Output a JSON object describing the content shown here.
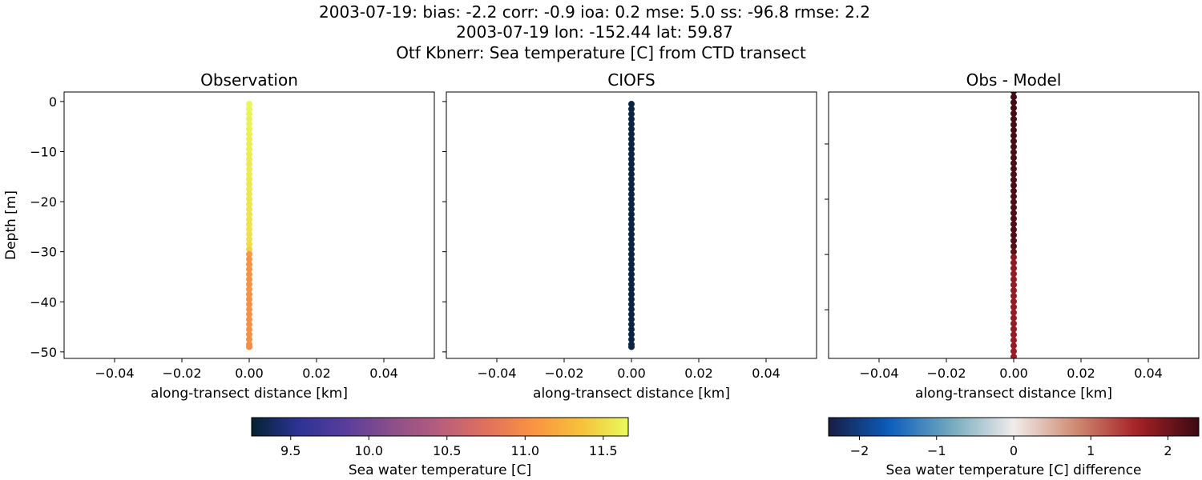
{
  "title_lines": [
    "2003-07-19: bias: -2.2  corr: -0.9  ioa: 0.2  mse: 5.0  ss: -96.8  rmse: 2.2",
    "2003-07-19 lon: -152.44 lat: 59.87",
    "Otf Kbnerr: Sea temperature [C] from CTD transect"
  ],
  "chart_data": [
    {
      "type": "scatter",
      "title": "Observation",
      "xlabel": "along-transect distance [km]",
      "ylabel": "Depth [m]",
      "xlim": [
        -0.055,
        0.055
      ],
      "ylim": [
        -51.3,
        1.9
      ],
      "xticks": [
        -0.04,
        -0.02,
        0.0,
        0.02,
        0.04
      ],
      "xtick_labels": [
        "−0.04",
        "−0.02",
        "0.00",
        "0.02",
        "0.04"
      ],
      "yticks": [
        0,
        -10,
        -20,
        -30,
        -40,
        -50
      ],
      "ytick_labels": [
        "0",
        "−10",
        "−20",
        "−30",
        "−40",
        "−50"
      ],
      "colormap": "thermal",
      "x": 0.0,
      "depth": [
        -0.5,
        -1.5,
        -2.5,
        -3.5,
        -4.5,
        -5.5,
        -6.5,
        -7.5,
        -8.5,
        -9.5,
        -10.5,
        -11.5,
        -12.5,
        -13.5,
        -14.5,
        -15.5,
        -16.5,
        -17.5,
        -18.5,
        -19.5,
        -20.5,
        -21.5,
        -22.5,
        -23.5,
        -24.5,
        -25.5,
        -26.5,
        -27.5,
        -28.5,
        -29.5,
        -30.5,
        -31.5,
        -32.5,
        -33.5,
        -34.5,
        -35.5,
        -36.5,
        -37.5,
        -38.5,
        -39.5,
        -40.5,
        -41.5,
        -42.5,
        -43.5,
        -44.5,
        -45.5,
        -46.5,
        -47.5,
        -48.5,
        -49.0
      ],
      "values": [
        11.65,
        11.64,
        11.63,
        11.62,
        11.62,
        11.61,
        11.61,
        11.6,
        11.6,
        11.6,
        11.59,
        11.59,
        11.58,
        11.58,
        11.58,
        11.57,
        11.57,
        11.57,
        11.56,
        11.56,
        11.56,
        11.55,
        11.55,
        11.55,
        11.54,
        11.54,
        11.53,
        11.52,
        11.5,
        11.45,
        11.1,
        11.06,
        11.05,
        11.05,
        11.05,
        11.04,
        11.04,
        11.04,
        11.04,
        11.03,
        11.03,
        11.03,
        11.03,
        11.02,
        11.02,
        11.02,
        11.02,
        11.01,
        11.0,
        11.0
      ]
    },
    {
      "type": "scatter",
      "title": "CIOFS",
      "xlabel": "along-transect distance [km]",
      "xlim": [
        -0.055,
        0.055
      ],
      "ylim": [
        -51.3,
        1.9
      ],
      "xticks": [
        -0.04,
        -0.02,
        0.0,
        0.02,
        0.04
      ],
      "xtick_labels": [
        "−0.04",
        "−0.02",
        "0.00",
        "0.02",
        "0.04"
      ],
      "yticks": [
        0,
        -10,
        -20,
        -30,
        -40,
        -50
      ],
      "colormap": "thermal",
      "x": 0.0,
      "depth": [
        -0.5,
        -1.5,
        -2.5,
        -3.5,
        -4.5,
        -5.5,
        -6.5,
        -7.5,
        -8.5,
        -9.5,
        -10.5,
        -11.5,
        -12.5,
        -13.5,
        -14.5,
        -15.5,
        -16.5,
        -17.5,
        -18.5,
        -19.5,
        -20.5,
        -21.5,
        -22.5,
        -23.5,
        -24.5,
        -25.5,
        -26.5,
        -27.5,
        -28.5,
        -29.5,
        -30.5,
        -31.5,
        -32.5,
        -33.5,
        -34.5,
        -35.5,
        -36.5,
        -37.5,
        -38.5,
        -39.5,
        -40.5,
        -41.5,
        -42.5,
        -43.5,
        -44.5,
        -45.5,
        -46.5,
        -47.5,
        -48.5,
        -49.0
      ],
      "values": [
        9.3,
        9.3,
        9.3,
        9.3,
        9.3,
        9.3,
        9.3,
        9.3,
        9.3,
        9.3,
        9.3,
        9.3,
        9.3,
        9.3,
        9.3,
        9.3,
        9.3,
        9.3,
        9.3,
        9.3,
        9.3,
        9.3,
        9.3,
        9.3,
        9.3,
        9.3,
        9.3,
        9.3,
        9.3,
        9.3,
        9.3,
        9.3,
        9.3,
        9.3,
        9.3,
        9.3,
        9.3,
        9.3,
        9.3,
        9.3,
        9.3,
        9.3,
        9.3,
        9.3,
        9.3,
        9.3,
        9.3,
        9.3,
        9.3,
        9.3
      ]
    },
    {
      "type": "scatter",
      "title": "Obs - Model",
      "xlabel": "along-transect distance [km]",
      "xlim": [
        -0.055,
        0.055
      ],
      "ylim": [
        -48.8,
        -0.6
      ],
      "xticks": [
        -0.04,
        -0.02,
        0.0,
        0.02,
        0.04
      ],
      "xtick_labels": [
        "−0.04",
        "−0.02",
        "0.00",
        "0.02",
        "0.04"
      ],
      "yticks": [
        -10,
        -20,
        -30,
        -40
      ],
      "colormap": "balance",
      "x": 0.0,
      "depth": [
        -0.5,
        -1.5,
        -2.5,
        -3.5,
        -4.5,
        -5.5,
        -6.5,
        -7.5,
        -8.5,
        -9.5,
        -10.5,
        -11.5,
        -12.5,
        -13.5,
        -14.5,
        -15.5,
        -16.5,
        -17.5,
        -18.5,
        -19.5,
        -20.5,
        -21.5,
        -22.5,
        -23.5,
        -24.5,
        -25.5,
        -26.5,
        -27.5,
        -28.5,
        -29.5,
        -30.5,
        -31.5,
        -32.5,
        -33.5,
        -34.5,
        -35.5,
        -36.5,
        -37.5,
        -38.5,
        -39.5,
        -40.5,
        -41.5,
        -42.5,
        -43.5,
        -44.5,
        -45.5,
        -46.5,
        -47.5,
        -48.5,
        -49.0
      ],
      "values": [
        2.35,
        2.34,
        2.33,
        2.32,
        2.32,
        2.31,
        2.31,
        2.3,
        2.3,
        2.3,
        2.29,
        2.29,
        2.28,
        2.28,
        2.28,
        2.27,
        2.27,
        2.27,
        2.26,
        2.26,
        2.26,
        2.25,
        2.25,
        2.25,
        2.24,
        2.24,
        2.23,
        2.22,
        2.2,
        2.15,
        1.8,
        1.76,
        1.75,
        1.75,
        1.75,
        1.74,
        1.74,
        1.74,
        1.74,
        1.73,
        1.73,
        1.73,
        1.73,
        1.72,
        1.72,
        1.72,
        1.72,
        1.71,
        1.7,
        1.7
      ]
    }
  ],
  "colorbars": [
    {
      "label": "Sea water temperature [C]",
      "range": [
        9.25,
        11.66
      ],
      "ticks": [
        9.5,
        10.0,
        10.5,
        11.0,
        11.5
      ],
      "tick_labels": [
        "9.5",
        "10.0",
        "10.5",
        "11.0",
        "11.5"
      ],
      "colormap": "thermal"
    },
    {
      "label": "Sea water temperature [C] difference",
      "range": [
        -2.4,
        2.4
      ],
      "ticks": [
        -2,
        -1,
        0,
        1,
        2
      ],
      "tick_labels": [
        "−2",
        "−1",
        "0",
        "1",
        "2"
      ],
      "colormap": "balance"
    }
  ],
  "colormaps": {
    "thermal": [
      "#042333",
      "#2c3395",
      "#593d9c",
      "#8c4f89",
      "#b85d7d",
      "#e1715c",
      "#fa9442",
      "#f7c13a",
      "#e8fa5b"
    ],
    "balance": [
      "#181c43",
      "#0c5ebe",
      "#75aabe",
      "#f1eceb",
      "#d08b73",
      "#a52125",
      "#3c0912"
    ]
  }
}
